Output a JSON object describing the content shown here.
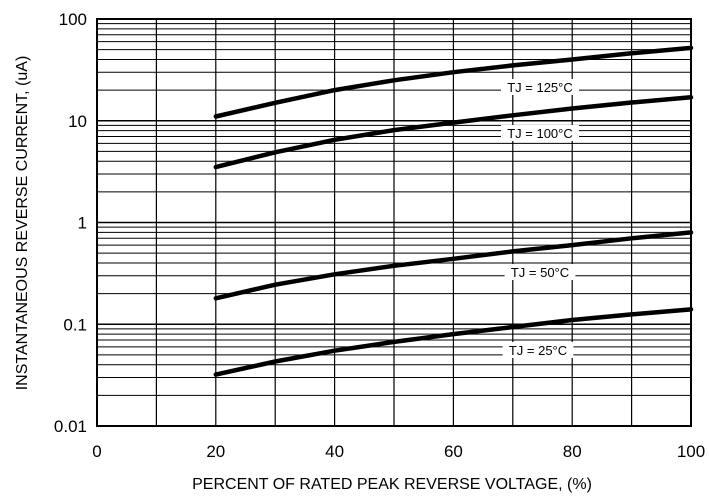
{
  "chart_data": {
    "type": "line",
    "title": "",
    "xlabel": "PERCENT OF RATED PEAK REVERSE VOLTAGE, (%)",
    "ylabel": "INSTANTANEOUS REVERSE CURRENT, (uA)",
    "xlim": [
      0,
      100
    ],
    "ylim": [
      0.01,
      100
    ],
    "yscale": "log",
    "grid": true,
    "x_ticks": [
      "0",
      "20",
      "40",
      "60",
      "80",
      "100"
    ],
    "y_ticks": [
      "0.01",
      "0.1",
      "1",
      "10",
      "100"
    ],
    "x": [
      20,
      30,
      40,
      50,
      60,
      70,
      80,
      90,
      100
    ],
    "series": [
      {
        "name": "TJ = 125°C",
        "values": [
          11,
          15,
          20,
          25,
          30,
          35,
          40,
          46,
          52
        ]
      },
      {
        "name": "TJ = 100°C",
        "values": [
          3.5,
          4.9,
          6.5,
          8.1,
          9.6,
          11.3,
          13.2,
          15.1,
          17
        ]
      },
      {
        "name": "TJ = 50°C",
        "values": [
          0.18,
          0.245,
          0.31,
          0.375,
          0.44,
          0.52,
          0.6,
          0.7,
          0.8
        ]
      },
      {
        "name": "TJ = 25°C",
        "values": [
          0.032,
          0.043,
          0.055,
          0.067,
          0.08,
          0.094,
          0.11,
          0.125,
          0.14
        ]
      }
    ],
    "line_color": "#000000"
  }
}
